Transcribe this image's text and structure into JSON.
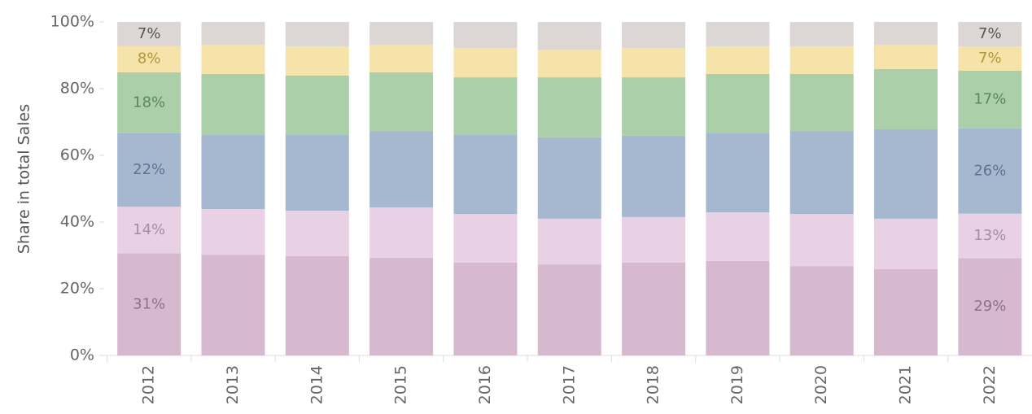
{
  "chart_data": {
    "type": "stacked_bar",
    "y_label": "Share in total Sales",
    "categories": [
      "2012",
      "2013",
      "2014",
      "2015",
      "2016",
      "2017",
      "2018",
      "2019",
      "2020",
      "2021",
      "2022"
    ],
    "ylim": [
      0,
      100
    ],
    "yticks": [
      {
        "value": 0,
        "label": "0%"
      },
      {
        "value": 20,
        "label": "20%"
      },
      {
        "value": 40,
        "label": "40%"
      },
      {
        "value": 60,
        "label": "60%"
      },
      {
        "value": 80,
        "label": "80%"
      },
      {
        "value": 100,
        "label": "100%"
      }
    ],
    "series": [
      {
        "color": "#d7b9cf",
        "label_color": "#8c7287",
        "values": [
          30.6,
          30.2,
          29.8,
          29.3,
          27.8,
          27.3,
          27.8,
          28.3,
          26.8,
          25.9,
          29.2
        ],
        "value_labels": [
          "31%",
          null,
          null,
          null,
          null,
          null,
          null,
          null,
          null,
          null,
          "29%"
        ]
      },
      {
        "color": "#e8d1e4",
        "label_color": "#a68ea1",
        "values": [
          14.0,
          13.7,
          13.6,
          15.1,
          14.6,
          13.7,
          13.7,
          14.6,
          15.6,
          15.1,
          13.3
        ],
        "value_labels": [
          "14%",
          null,
          null,
          null,
          null,
          null,
          null,
          null,
          null,
          null,
          "13%"
        ]
      },
      {
        "color": "#a5b8d0",
        "label_color": "#5d7391",
        "values": [
          22.0,
          22.4,
          22.9,
          22.9,
          23.9,
          24.4,
          24.4,
          23.9,
          24.9,
          26.8,
          25.6
        ],
        "value_labels": [
          "22%",
          null,
          null,
          null,
          null,
          null,
          null,
          null,
          null,
          null,
          "26%"
        ]
      },
      {
        "color": "#abcfa9",
        "label_color": "#5b8758",
        "values": [
          18.3,
          18.1,
          17.6,
          17.6,
          17.1,
          18.0,
          17.5,
          17.6,
          17.1,
          18.1,
          17.3
        ],
        "value_labels": [
          "18%",
          null,
          null,
          null,
          null,
          null,
          null,
          null,
          null,
          null,
          "17%"
        ]
      },
      {
        "color": "#f6e3aa",
        "label_color": "#b0973a",
        "values": [
          7.9,
          8.8,
          8.8,
          8.3,
          8.8,
          8.3,
          8.8,
          8.3,
          8.3,
          7.3,
          7.2
        ],
        "value_labels": [
          "8%",
          null,
          null,
          null,
          null,
          null,
          null,
          null,
          null,
          null,
          "7%"
        ]
      },
      {
        "color": "#dcd6d4",
        "label_color": "#555555",
        "values": [
          7.2,
          6.8,
          7.3,
          6.8,
          7.8,
          8.3,
          7.8,
          7.3,
          7.3,
          6.8,
          7.4
        ],
        "value_labels": [
          "7%",
          null,
          null,
          null,
          null,
          null,
          null,
          null,
          null,
          null,
          "7%"
        ]
      }
    ]
  }
}
